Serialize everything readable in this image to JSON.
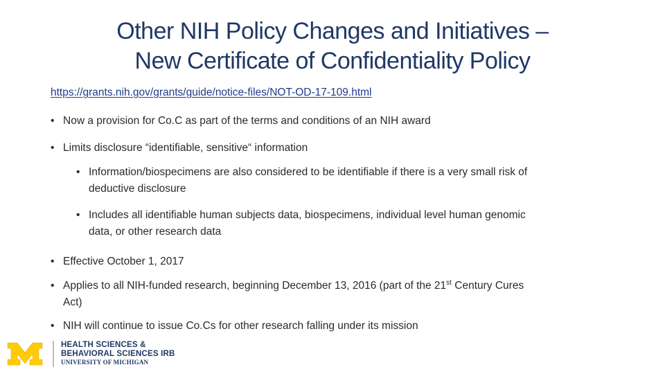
{
  "slide": {
    "title_line1": "Other NIH Policy Changes and Initiatives –",
    "title_line2": "New Certificate of Confidentiality Policy",
    "link": "https://grants.nih.gov/grants/guide/notice-files/NOT-OD-17-109.html",
    "bullet_char": "•",
    "bullets": {
      "b1": "Now a provision for Co.C as part of the terms and conditions of an NIH award",
      "b2": "Limits disclosure “identifiable, sensitive“ information",
      "b2_sub1_line1": "Information/biospecimens are also considered to be identifiable if there is a very small risk of",
      "b2_sub1_line2": "deductive disclosure",
      "b2_sub2_line1": "Includes all identifiable human subjects data, biospecimens, individual level human genomic",
      "b2_sub2_line2": "data, or other research data",
      "b3": "Effective October 1, 2017",
      "b4_part1": "Applies to all NIH-funded research, beginning December 13, 2016 (part of the 21",
      "b4_sup": "st",
      "b4_part2": " Century Cures",
      "b4_line2": "Act)",
      "b5": "NIH will continue to issue Co.Cs for other research falling under its mission"
    }
  },
  "footer": {
    "logo_icon": "university-of-michigan-block-m",
    "logo_line1": "HEALTH SCIENCES &",
    "logo_line2": "BEHAVIORAL SCIENCES IRB",
    "logo_line3": "UNIVERSITY OF MICHIGAN",
    "colors": {
      "maize": "#FFCB05",
      "blue": "#1F3864"
    }
  }
}
